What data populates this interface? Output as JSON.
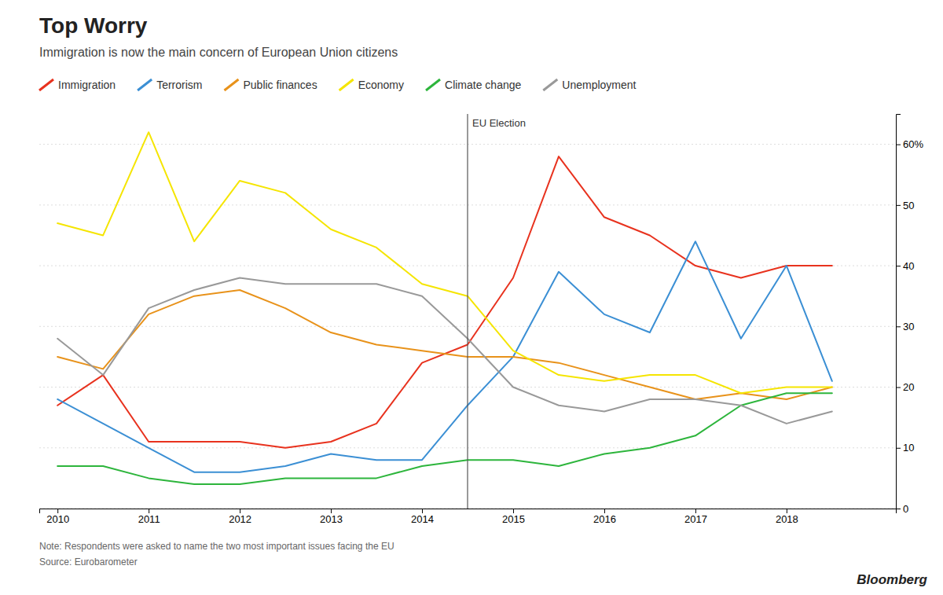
{
  "chart_data": {
    "type": "line",
    "title": "Top Worry",
    "subtitle": "Immigration is now the main concern of European Union citizens",
    "note": "Note: Respondents were asked to name the two most important issues facing the EU",
    "source": "Source: Eurobarometer",
    "credit": "Bloomberg",
    "x": [
      2010,
      2010.5,
      2011,
      2011.5,
      2012,
      2012.5,
      2013,
      2013.5,
      2014,
      2014.5,
      2015,
      2015.5,
      2016,
      2016.5,
      2017,
      2017.5,
      2018,
      2018.5
    ],
    "series": [
      {
        "name": "Immigration",
        "color": "#e8321e",
        "values": [
          17,
          22,
          11,
          11,
          11,
          10,
          11,
          14,
          24,
          27,
          38,
          58,
          48,
          45,
          40,
          38,
          40,
          40
        ]
      },
      {
        "name": "Terrorism",
        "color": "#3b8fd4",
        "values": [
          18,
          14,
          10,
          6,
          6,
          7,
          9,
          8,
          8,
          17,
          25,
          39,
          32,
          29,
          44,
          28,
          40,
          21
        ]
      },
      {
        "name": "Public finances",
        "color": "#e8921a",
        "values": [
          25,
          23,
          32,
          35,
          36,
          33,
          29,
          27,
          26,
          25,
          25,
          24,
          22,
          20,
          18,
          19,
          18,
          20
        ]
      },
      {
        "name": "Economy",
        "color": "#f5e500",
        "values": [
          47,
          45,
          62,
          44,
          54,
          52,
          46,
          43,
          37,
          35,
          26,
          22,
          21,
          22,
          22,
          19,
          20,
          20
        ]
      },
      {
        "name": "Climate change",
        "color": "#2db53c",
        "values": [
          7,
          7,
          5,
          4,
          4,
          5,
          5,
          5,
          7,
          8,
          8,
          7,
          9,
          10,
          12,
          17,
          19,
          19
        ]
      },
      {
        "name": "Unemployment",
        "color": "#999999",
        "values": [
          28,
          22,
          33,
          36,
          38,
          37,
          37,
          37,
          35,
          28,
          20,
          17,
          16,
          18,
          18,
          17,
          14,
          16
        ]
      }
    ],
    "annotations": [
      {
        "x": 2014.5,
        "label": "EU Election"
      }
    ],
    "xlim": [
      2009.8,
      2019.2
    ],
    "xticks": [
      2010,
      2011,
      2012,
      2013,
      2014,
      2015,
      2016,
      2017,
      2018
    ],
    "ylim": [
      0,
      65
    ],
    "yticks": [
      0,
      10,
      20,
      30,
      40,
      50,
      {
        "value": 60,
        "label": "60%"
      }
    ],
    "grid": true,
    "legend": "top"
  }
}
